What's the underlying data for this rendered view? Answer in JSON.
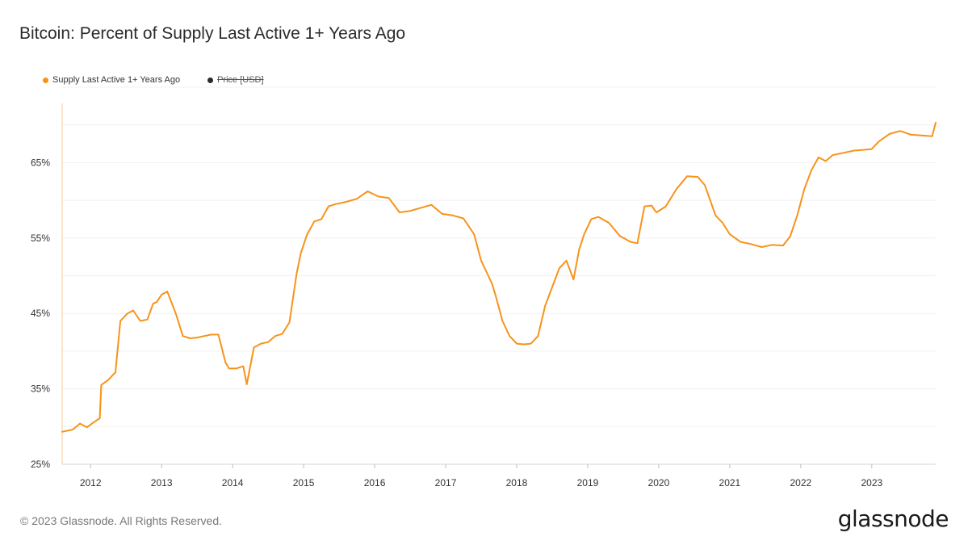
{
  "header": {
    "title": "Bitcoin: Percent of Supply Last Active 1+ Years Ago"
  },
  "legend": {
    "items": [
      {
        "label": "Supply Last Active 1+ Years Ago",
        "color": "#f7931a",
        "active": true
      },
      {
        "label": "Price [USD]",
        "color": "#2b2b2b",
        "active": false
      }
    ]
  },
  "footer": {
    "copyright": "© 2023 Glassnode. All Rights Reserved.",
    "brand": "glassnode"
  },
  "chart_data": {
    "type": "line",
    "title": "Bitcoin: Percent of Supply Last Active 1+ Years Ago",
    "xlabel": "",
    "ylabel": "",
    "x_range": [
      2011.6,
      2023.9
    ],
    "ylim": [
      25,
      75
    ],
    "x_tick_labels": [
      "2012",
      "2013",
      "2014",
      "2015",
      "2016",
      "2017",
      "2018",
      "2019",
      "2020",
      "2021",
      "2022",
      "2023"
    ],
    "y_tick_values": [
      25,
      35,
      45,
      55,
      65
    ],
    "y_tick_labels": [
      "25%",
      "35%",
      "45%",
      "55%",
      "65%"
    ],
    "grid": true,
    "legend_position": "top-left",
    "series": [
      {
        "name": "Supply Last Active 1+ Years Ago",
        "color": "#f7931a",
        "x": [
          2011.6,
          2011.75,
          2011.85,
          2011.95,
          2012.05,
          2012.13,
          2012.15,
          2012.25,
          2012.35,
          2012.42,
          2012.48,
          2012.52,
          2012.6,
          2012.7,
          2012.8,
          2012.88,
          2012.93,
          2013.0,
          2013.08,
          2013.2,
          2013.3,
          2013.4,
          2013.5,
          2013.6,
          2013.7,
          2013.8,
          2013.9,
          2013.95,
          2014.05,
          2014.15,
          2014.2,
          2014.3,
          2014.4,
          2014.5,
          2014.6,
          2014.7,
          2014.8,
          2014.9,
          2014.96,
          2015.05,
          2015.15,
          2015.25,
          2015.35,
          2015.45,
          2015.6,
          2015.75,
          2015.9,
          2016.05,
          2016.2,
          2016.35,
          2016.5,
          2016.65,
          2016.8,
          2016.95,
          2017.1,
          2017.25,
          2017.4,
          2017.5,
          2017.6,
          2017.65,
          2017.7,
          2017.8,
          2017.9,
          2018.0,
          2018.1,
          2018.2,
          2018.3,
          2018.4,
          2018.5,
          2018.6,
          2018.7,
          2018.8,
          2018.88,
          2018.95,
          2019.05,
          2019.15,
          2019.3,
          2019.45,
          2019.6,
          2019.7,
          2019.8,
          2019.9,
          2019.95,
          2019.97,
          2020.1,
          2020.25,
          2020.4,
          2020.55,
          2020.65,
          2020.8,
          2020.9,
          2021.0,
          2021.15,
          2021.3,
          2021.45,
          2021.6,
          2021.75,
          2021.85,
          2021.95,
          2022.05,
          2022.15,
          2022.25,
          2022.35,
          2022.45,
          2022.6,
          2022.75,
          2022.9,
          2023.0,
          2023.1,
          2023.25,
          2023.4,
          2023.55,
          2023.7,
          2023.85,
          2023.9
        ],
        "y": [
          29.3,
          29.6,
          30.4,
          29.9,
          30.6,
          31.1,
          35.5,
          36.2,
          37.2,
          44.0,
          44.6,
          45.0,
          45.4,
          44.0,
          44.2,
          46.3,
          46.5,
          47.5,
          47.9,
          45.0,
          42.0,
          41.7,
          41.8,
          42.0,
          42.2,
          42.2,
          38.5,
          37.7,
          37.7,
          38.0,
          35.6,
          40.5,
          41.0,
          41.2,
          42.0,
          42.3,
          43.8,
          50.2,
          53.0,
          55.5,
          57.2,
          57.5,
          59.2,
          59.5,
          59.8,
          60.2,
          61.2,
          60.5,
          60.3,
          58.4,
          58.6,
          59.0,
          59.4,
          58.2,
          58.0,
          57.6,
          55.5,
          52.0,
          50.0,
          49.0,
          47.5,
          44.0,
          42.0,
          41.0,
          40.9,
          41.0,
          42.0,
          46.0,
          48.5,
          51.0,
          52.0,
          49.5,
          53.5,
          55.5,
          57.5,
          57.8,
          57.0,
          55.3,
          54.5,
          54.3,
          59.2,
          59.3,
          58.6,
          58.4,
          59.2,
          61.5,
          63.2,
          63.1,
          62.0,
          58.0,
          57.0,
          55.5,
          54.5,
          54.2,
          53.8,
          54.1,
          54.0,
          55.2,
          58.0,
          61.5,
          64.0,
          65.7,
          65.2,
          66.0,
          66.3,
          66.6,
          66.7,
          66.8,
          67.8,
          68.8,
          69.2,
          68.7,
          68.6,
          68.5,
          70.3
        ]
      }
    ]
  }
}
